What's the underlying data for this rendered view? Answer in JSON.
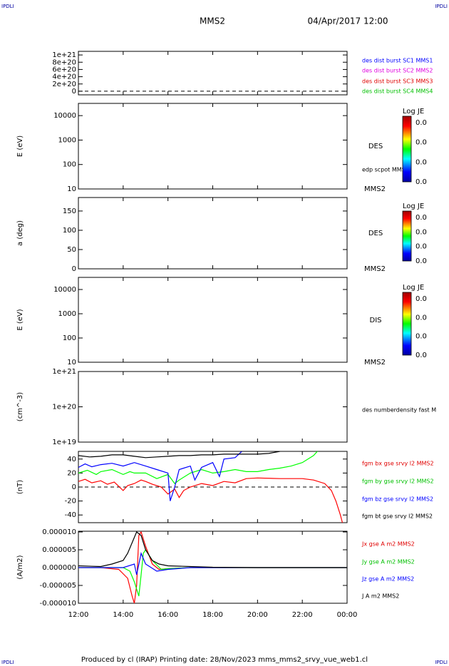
{
  "header": {
    "corner_labels": [
      "IPDLI",
      "IPDLI",
      "IPDLI",
      "IPDLI"
    ],
    "spacecraft": "MMS2",
    "date": "04/Apr/2017 12:00"
  },
  "footer": "Produced by cl (IRAP)   Printing date: 28/Nov/2023   mms_mms2_srvy_vue_web1.cl",
  "chart_data": [
    {
      "type": "line",
      "ylim": [
        -100000000000000000000,
        1100000000000000000000
      ],
      "yticks": [
        0,
        {
          "value": 200000000000000000000,
          "label": "2e+20"
        },
        {
          "value": 400000000000000000000,
          "label": "4e+20"
        },
        {
          "value": 600000000000000000000,
          "label": "6e+20"
        },
        {
          "value": 800000000000000000000,
          "label": "8e+20"
        },
        {
          "value": 1000000000000000000000,
          "label": "1e+21"
        }
      ],
      "zero_line": true,
      "legend": [
        {
          "text": "des dist burst SC1 MMS1",
          "color": "#0000ff"
        },
        {
          "text": "des dist burst SC2 MMS2",
          "color": "#e000e0"
        },
        {
          "text": "des dist burst SC3 MMS3",
          "color": "#e00000"
        },
        {
          "text": "des dist burst SC4 MMS4",
          "color": "#00c000"
        }
      ]
    },
    {
      "type": "spectrogram",
      "ylabel": "E (eV)",
      "log": true,
      "ylim": [
        10,
        31623
      ],
      "yticks": [
        10,
        100,
        1000,
        10000
      ],
      "legend": [
        {
          "text": "DES",
          "color": "#000000"
        },
        {
          "text": "edp scpot MMS2",
          "color": "#000000"
        },
        {
          "text": "MMS2",
          "color": "#000000"
        }
      ],
      "colorbar": {
        "title": "Log JE",
        "labels": [
          "0.0",
          "0.0",
          "0.0",
          "0.0"
        ]
      }
    },
    {
      "type": "spectrogram",
      "ylabel": "a (deg)",
      "ylim": [
        0,
        185
      ],
      "yticks": [
        0,
        50,
        100,
        150
      ],
      "legend": [
        {
          "text": "DES",
          "color": "#000000"
        },
        {
          "text": "MMS2",
          "color": "#000000"
        }
      ],
      "colorbar": {
        "title": "Log JE",
        "labels": [
          "0.0",
          "0.0",
          "0.0",
          "0.0"
        ]
      }
    },
    {
      "type": "spectrogram",
      "ylabel": "E (eV)",
      "log": true,
      "ylim": [
        10,
        31623
      ],
      "yticks": [
        10,
        100,
        1000,
        10000
      ],
      "legend": [
        {
          "text": "DIS",
          "color": "#000000"
        },
        {
          "text": "MMS2",
          "color": "#000000"
        }
      ],
      "colorbar": {
        "title": "Log JE",
        "labels": [
          "0.0",
          "0.0",
          "0.0",
          "0.0"
        ]
      }
    },
    {
      "type": "line",
      "ylabel": "(cm^-3)",
      "log": true,
      "ylim": [
        10000000000000000000,
        1000000000000000000000
      ],
      "yticks": [
        {
          "value": 10000000000000000000,
          "label": "1e+19"
        },
        {
          "value": 100000000000000000000,
          "label": "1e+20"
        },
        {
          "value": 1000000000000000000000,
          "label": "1e+21"
        }
      ],
      "legend": [
        {
          "text": "des numberdensity fast M",
          "color": "#000000"
        }
      ]
    },
    {
      "type": "line",
      "ylabel": "(nT)",
      "ylim": [
        -51,
        51
      ],
      "yticks": [
        -40,
        -20,
        0,
        20,
        40
      ],
      "zero_line": true,
      "legend": [
        {
          "text": "fgm bx gse srvy l2 MMS2",
          "color": "#e00000"
        },
        {
          "text": "fgm by gse srvy l2 MMS2",
          "color": "#00c000"
        },
        {
          "text": "fgm bz gse srvy l2 MMS2",
          "color": "#0000ff"
        },
        {
          "text": "fgm bt gse srvy l2 MMS2",
          "color": "#000000"
        }
      ],
      "series": [
        {
          "name": "fgm bx",
          "color": "#ff0000",
          "x": [
            12,
            12.3,
            12.6,
            13,
            13.3,
            13.6,
            14,
            14.2,
            14.5,
            14.8,
            15,
            15.3,
            15.7,
            16,
            16.3,
            16.5,
            16.7,
            17,
            17.5,
            18,
            18.5,
            19,
            19.5,
            20,
            21,
            22,
            22.5,
            23,
            23.3,
            23.5,
            23.7,
            23.8
          ],
          "values": [
            8,
            11,
            6,
            9,
            4,
            7,
            -5,
            2,
            5,
            10,
            8,
            4,
            0,
            -10,
            -3,
            -15,
            -5,
            0,
            5,
            2,
            8,
            6,
            12,
            13,
            12,
            12,
            10,
            5,
            -5,
            -20,
            -40,
            -52
          ]
        },
        {
          "name": "fgm by",
          "color": "#00ff00",
          "x": [
            12,
            12.4,
            12.8,
            13,
            13.5,
            14,
            14.3,
            14.5,
            15,
            15.5,
            16,
            16.3,
            16.5,
            17,
            17.5,
            18,
            18.5,
            19,
            19.5,
            20,
            20.5,
            21,
            21.5,
            22,
            22.5,
            22.7
          ],
          "values": [
            20,
            24,
            18,
            22,
            25,
            18,
            22,
            20,
            20,
            12,
            18,
            5,
            10,
            20,
            25,
            20,
            22,
            25,
            22,
            22,
            25,
            27,
            30,
            35,
            45,
            52
          ]
        },
        {
          "name": "fgm bz",
          "color": "#0000ff",
          "x": [
            12,
            12.3,
            12.6,
            13,
            13.5,
            14,
            14.5,
            15,
            15.5,
            16,
            16.1,
            16.3,
            16.5,
            17,
            17.2,
            17.5,
            18,
            18.3,
            18.5,
            19,
            19.3
          ],
          "values": [
            28,
            33,
            29,
            32,
            34,
            30,
            35,
            30,
            25,
            20,
            -20,
            0,
            25,
            30,
            10,
            28,
            35,
            15,
            40,
            42,
            51
          ]
        },
        {
          "name": "fgm bt",
          "color": "#000000",
          "x": [
            12,
            12.5,
            13,
            13.5,
            14,
            14.5,
            15,
            15.5,
            16,
            16.5,
            17,
            17.5,
            18,
            18.5,
            19,
            19.5,
            20,
            20.5,
            21
          ],
          "values": [
            45,
            43,
            44,
            46,
            46,
            44,
            42,
            43,
            44,
            45,
            45,
            46,
            46,
            47,
            47,
            47,
            47,
            48,
            51
          ]
        }
      ]
    },
    {
      "type": "line",
      "ylabel": "(A/m2)",
      "ylim": [
        -1e-05,
        1.02e-05
      ],
      "yticks": [
        {
          "value": -1e-05,
          "label": "-0.000010"
        },
        {
          "value": -5e-06,
          "label": "-0.000005"
        },
        {
          "value": 0,
          "label": "0.000000"
        },
        {
          "value": 5e-06,
          "label": "0.000005"
        },
        {
          "value": 1e-05,
          "label": "0.000010"
        }
      ],
      "legend": [
        {
          "text": "Jx gse A m2 MMS2",
          "color": "#e00000"
        },
        {
          "text": "Jy gse A m2 MMS2",
          "color": "#00c000"
        },
        {
          "text": "Jz gse A m2 MMS2",
          "color": "#0000ff"
        },
        {
          "text": "J A m2 MMS2",
          "color": "#000000"
        }
      ],
      "xlim": [
        12,
        24
      ],
      "xticks": [
        {
          "value": 12,
          "label": "12:00"
        },
        {
          "value": 14,
          "label": "14:00"
        },
        {
          "value": 16,
          "label": "16:00"
        },
        {
          "value": 18,
          "label": "18:00"
        },
        {
          "value": 20,
          "label": "20:00"
        },
        {
          "value": 22,
          "label": "22:00"
        },
        {
          "value": 24,
          "label": "00:00"
        }
      ],
      "series": [
        {
          "name": "Jx",
          "color": "#ff0000",
          "x": [
            12,
            13,
            13.8,
            14.2,
            14.4,
            14.5,
            14.6,
            14.7,
            14.8,
            15,
            15.3,
            15.6,
            16,
            17,
            24
          ],
          "values": [
            0,
            0,
            -5e-07,
            -3e-06,
            -8e-06,
            -1e-05,
            -5e-06,
            9e-06,
            1e-05,
            6e-06,
            1e-06,
            -5e-07,
            -3e-07,
            0,
            0
          ]
        },
        {
          "name": "Jy",
          "color": "#00ff00",
          "x": [
            12,
            14,
            14.3,
            14.5,
            14.7,
            14.8,
            14.9,
            15,
            15.3,
            15.7,
            16,
            17,
            24
          ],
          "values": [
            0,
            0,
            -1e-06,
            -4e-06,
            -8e-06,
            -2e-06,
            4e-06,
            5e-06,
            2e-06,
            -5e-07,
            -3e-07,
            0,
            0
          ]
        },
        {
          "name": "Jz",
          "color": "#0000ff",
          "x": [
            12,
            14,
            14.5,
            14.6,
            14.8,
            15,
            15.5,
            16,
            17,
            24
          ],
          "values": [
            0,
            0,
            1e-06,
            -2e-06,
            4e-06,
            1e-06,
            -1e-06,
            -5e-07,
            0,
            0
          ]
        },
        {
          "name": "J",
          "color": "#000000",
          "x": [
            12,
            13,
            13.5,
            14,
            14.2,
            14.4,
            14.6,
            14.8,
            15,
            15.3,
            15.6,
            16,
            17,
            18,
            20,
            24
          ],
          "values": [
            5e-07,
            3e-07,
            1e-06,
            2e-06,
            4e-06,
            7e-06,
            1e-05,
            9e-06,
            5e-06,
            2e-06,
            1e-06,
            5e-07,
            3e-07,
            1e-07,
            0,
            0
          ]
        }
      ]
    }
  ]
}
